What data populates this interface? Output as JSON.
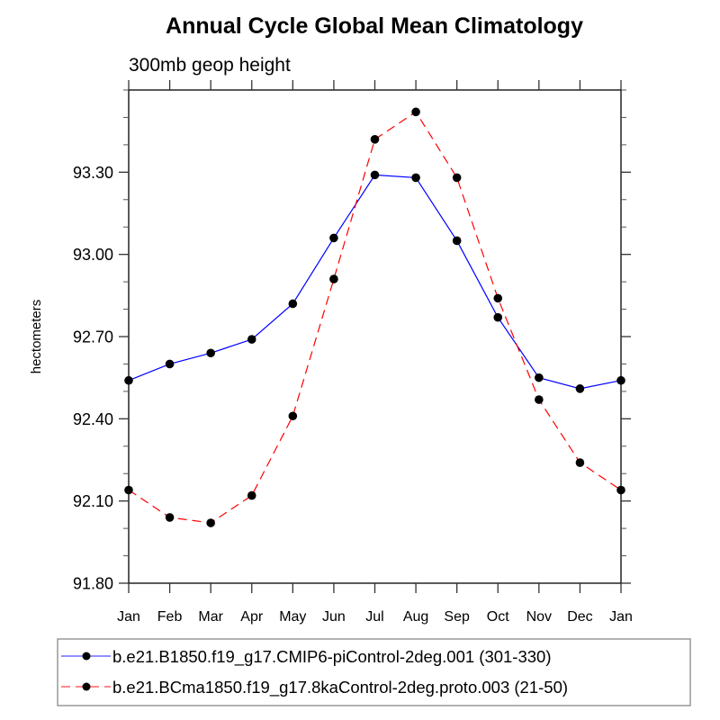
{
  "chart_data": {
    "type": "line",
    "title": "Annual Cycle Global Mean Climatology",
    "subtitle": "300mb geop height",
    "xlabel": "",
    "ylabel": "hectometers",
    "x": [
      "Jan",
      "Feb",
      "Mar",
      "Apr",
      "May",
      "Jun",
      "Jul",
      "Aug",
      "Sep",
      "Oct",
      "Nov",
      "Dec",
      "Jan"
    ],
    "ylim": [
      91.8,
      93.6
    ],
    "yticks": [
      91.8,
      92.1,
      92.4,
      92.7,
      93.0,
      93.3
    ],
    "ytick_labels": [
      "91.80",
      "92.10",
      "92.40",
      "92.70",
      "93.00",
      "93.30"
    ],
    "grid": false,
    "legend_position": "bottom",
    "series": [
      {
        "name": "b.e21.B1850.f19_g17.CMIP6-piControl-2deg.001 (301-330)",
        "color": "#0000ff",
        "line_style": "solid",
        "marker": "filled-circle",
        "values": [
          92.54,
          92.6,
          92.64,
          92.69,
          92.82,
          93.06,
          93.29,
          93.28,
          93.05,
          92.77,
          92.55,
          92.51,
          92.54
        ]
      },
      {
        "name": "b.e21.BCma1850.f19_g17.8kaControl-2deg.proto.003 (21-50)",
        "color": "#ff0000",
        "line_style": "dashed",
        "marker": "filled-circle",
        "values": [
          92.14,
          92.04,
          92.02,
          92.12,
          92.41,
          92.91,
          93.42,
          93.52,
          93.28,
          92.84,
          92.47,
          92.24,
          92.14
        ]
      }
    ]
  }
}
